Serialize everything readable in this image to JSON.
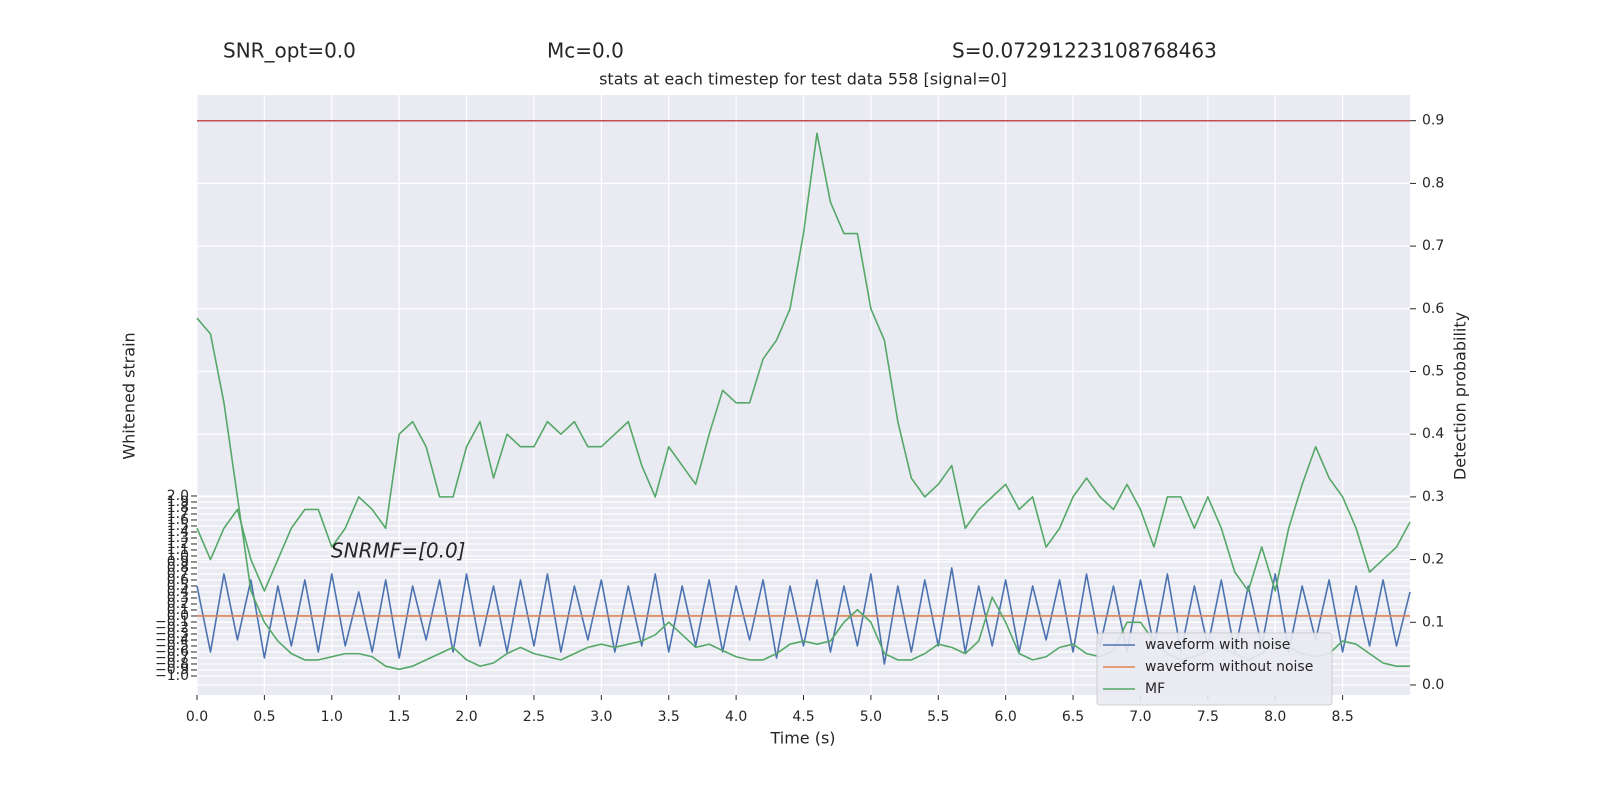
{
  "chart_data": {
    "type": "line",
    "title": "stats at each timestep for test data 558 [signal=0]",
    "headers": [
      "SNR_opt=0.0",
      "Mc=0.0",
      "S=0.07291223108768463"
    ],
    "annotation": "SNRMF=[0.0]",
    "xlabel": "Time (s)",
    "ylabel": "Whitened strain",
    "y2label": "Detection probability",
    "grid": true,
    "legend": "lower right",
    "xlim": [
      0,
      9
    ],
    "ylim": [
      -1.317,
      8.683
    ],
    "y2lim": [
      -0.016,
      0.941
    ],
    "threshold": 0.9,
    "threshold_color": "#c44e52",
    "xticks": [
      {
        "value": 0,
        "label": "0.0"
      },
      {
        "value": 0.5,
        "label": "0.5"
      },
      {
        "value": 1,
        "label": "1.0"
      },
      {
        "value": 1.5,
        "label": "1.5"
      },
      {
        "value": 2,
        "label": "2.0"
      },
      {
        "value": 2.5,
        "label": "2.5"
      },
      {
        "value": 3,
        "label": "3.0"
      },
      {
        "value": 3.5,
        "label": "3.5"
      },
      {
        "value": 4,
        "label": "4.0"
      },
      {
        "value": 4.5,
        "label": "4.5"
      },
      {
        "value": 5,
        "label": "5.0"
      },
      {
        "value": 5.5,
        "label": "5.5"
      },
      {
        "value": 6,
        "label": "6.0"
      },
      {
        "value": 6.5,
        "label": "6.5"
      },
      {
        "value": 7,
        "label": "7.0"
      },
      {
        "value": 7.5,
        "label": "7.5"
      },
      {
        "value": 8,
        "label": "8.0"
      },
      {
        "value": 8.5,
        "label": "8.5"
      }
    ],
    "yticks": [
      {
        "value": -1,
        "label": "−1.0"
      },
      {
        "value": -0.9,
        "label": "−0.9"
      },
      {
        "value": -0.8,
        "label": "−0.8"
      },
      {
        "value": -0.7,
        "label": "−0.7"
      },
      {
        "value": -0.6,
        "label": "−0.6"
      },
      {
        "value": -0.5,
        "label": "−0.5"
      },
      {
        "value": -0.4,
        "label": "−0.4"
      },
      {
        "value": -0.3,
        "label": "−0.3"
      },
      {
        "value": -0.2,
        "label": "−0.2"
      },
      {
        "value": -0.1,
        "label": "−0.1"
      },
      {
        "value": 0,
        "label": "0.0"
      },
      {
        "value": 0.1,
        "label": "0.1"
      },
      {
        "value": 0.2,
        "label": "0.2"
      },
      {
        "value": 0.3,
        "label": "0.3"
      },
      {
        "value": 0.4,
        "label": "0.4"
      },
      {
        "value": 0.5,
        "label": "0.5"
      },
      {
        "value": 0.6,
        "label": "0.6"
      },
      {
        "value": 0.7,
        "label": "0.7"
      },
      {
        "value": 0.8,
        "label": "0.8"
      },
      {
        "value": 0.9,
        "label": "0.9"
      },
      {
        "value": 1,
        "label": "1.0"
      },
      {
        "value": 1.1,
        "label": "1.1"
      },
      {
        "value": 1.2,
        "label": "1.2"
      },
      {
        "value": 1.3,
        "label": "1.3"
      },
      {
        "value": 1.4,
        "label": "1.4"
      },
      {
        "value": 1.5,
        "label": "1.5"
      },
      {
        "value": 1.6,
        "label": "1.6"
      },
      {
        "value": 1.7,
        "label": "1.7"
      },
      {
        "value": 1.8,
        "label": "1.8"
      },
      {
        "value": 1.9,
        "label": "1.9"
      },
      {
        "value": 2,
        "label": "2.0"
      }
    ],
    "y2ticks": [
      {
        "value": 0,
        "label": "0.0"
      },
      {
        "value": 0.1,
        "label": "0.1"
      },
      {
        "value": 0.2,
        "label": "0.2"
      },
      {
        "value": 0.3,
        "label": "0.3"
      },
      {
        "value": 0.4,
        "label": "0.4"
      },
      {
        "value": 0.5,
        "label": "0.5"
      },
      {
        "value": 0.6,
        "label": "0.6"
      },
      {
        "value": 0.7,
        "label": "0.7"
      },
      {
        "value": 0.8,
        "label": "0.8"
      },
      {
        "value": 0.9,
        "label": "0.9"
      }
    ],
    "x": [
      0,
      0.1,
      0.2,
      0.3,
      0.4,
      0.5,
      0.6,
      0.7,
      0.8,
      0.9,
      1,
      1.1,
      1.2,
      1.3,
      1.4,
      1.5,
      1.6,
      1.7,
      1.8,
      1.9,
      2,
      2.1,
      2.2,
      2.3,
      2.4,
      2.5,
      2.6,
      2.7,
      2.8,
      2.9,
      3,
      3.1,
      3.2,
      3.3,
      3.4,
      3.5,
      3.6,
      3.7,
      3.8,
      3.9,
      4,
      4.1,
      4.2,
      4.3,
      4.4,
      4.5,
      4.6,
      4.7,
      4.8,
      4.9,
      5,
      5.1,
      5.2,
      5.3,
      5.4,
      5.5,
      5.6,
      5.7,
      5.8,
      5.9,
      6,
      6.1,
      6.2,
      6.3,
      6.4,
      6.5,
      6.6,
      6.7,
      6.8,
      6.9,
      7,
      7.1,
      7.2,
      7.3,
      7.4,
      7.5,
      7.6,
      7.7,
      7.8,
      7.9,
      8,
      8.1,
      8.2,
      8.3,
      8.4,
      8.5,
      8.6,
      8.7,
      8.8,
      8.9,
      9
    ],
    "series": [
      {
        "name": "waveform with noise",
        "color": "#4c72b0",
        "values": [
          0.5,
          -0.6,
          0.7,
          -0.4,
          0.6,
          -0.7,
          0.5,
          -0.5,
          0.6,
          -0.6,
          0.7,
          -0.5,
          0.4,
          -0.6,
          0.6,
          -0.7,
          0.5,
          -0.4,
          0.6,
          -0.6,
          0.7,
          -0.5,
          0.5,
          -0.6,
          0.6,
          -0.5,
          0.7,
          -0.6,
          0.5,
          -0.4,
          0.6,
          -0.6,
          0.5,
          -0.5,
          0.7,
          -0.6,
          0.5,
          -0.5,
          0.6,
          -0.6,
          0.5,
          -0.4,
          0.6,
          -0.7,
          0.5,
          -0.5,
          0.6,
          -0.6,
          0.5,
          -0.5,
          0.7,
          -0.8,
          0.5,
          -0.6,
          0.6,
          -0.5,
          0.8,
          -0.6,
          0.5,
          -0.5,
          0.6,
          -0.6,
          0.5,
          -0.4,
          0.6,
          -0.6,
          0.7,
          -0.5,
          0.5,
          -0.6,
          0.6,
          -0.5,
          0.7,
          -0.6,
          0.5,
          -0.5,
          0.6,
          -0.6,
          0.5,
          -0.5,
          0.7,
          -0.6,
          0.5,
          -0.4,
          0.6,
          -0.6,
          0.5,
          -0.5,
          0.6,
          -0.5,
          0.4
        ]
      },
      {
        "name": "waveform without noise",
        "color": "#dd8452",
        "x": [
          0,
          9
        ],
        "values": [
          0,
          0
        ]
      },
      {
        "name": "MF",
        "color": "#55a868",
        "axis": "y2",
        "values": [
          0.585,
          0.56,
          0.45,
          0.3,
          0.15,
          0.1,
          0.07,
          0.05,
          0.04,
          0.04,
          0.045,
          0.05,
          0.05,
          0.045,
          0.03,
          0.025,
          0.03,
          0.04,
          0.05,
          0.06,
          0.04,
          0.03,
          0.035,
          0.05,
          0.06,
          0.05,
          0.045,
          0.04,
          0.05,
          0.06,
          0.065,
          0.06,
          0.065,
          0.07,
          0.08,
          0.1,
          0.08,
          0.06,
          0.065,
          0.055,
          0.045,
          0.04,
          0.04,
          0.05,
          0.065,
          0.07,
          0.065,
          0.07,
          0.1,
          0.12,
          0.1,
          0.05,
          0.04,
          0.04,
          0.05,
          0.065,
          0.06,
          0.05,
          0.07,
          0.14,
          0.1,
          0.05,
          0.04,
          0.045,
          0.06,
          0.065,
          0.05,
          0.045,
          0.055,
          0.1,
          0.1,
          0.07,
          0.05,
          0.04,
          0.045,
          0.055,
          0.06,
          0.05,
          0.04,
          0.05,
          0.07,
          0.06,
          0.05,
          0.045,
          0.05,
          0.07,
          0.065,
          0.05,
          0.035,
          0.03,
          0.03
        ]
      },
      {
        "color": "#55a868",
        "axis": "y2",
        "values": [
          0.25,
          0.2,
          0.25,
          0.28,
          0.2,
          0.15,
          0.2,
          0.25,
          0.28,
          0.28,
          0.22,
          0.25,
          0.3,
          0.28,
          0.25,
          0.4,
          0.42,
          0.38,
          0.3,
          0.3,
          0.38,
          0.42,
          0.33,
          0.4,
          0.38,
          0.38,
          0.42,
          0.4,
          0.42,
          0.38,
          0.38,
          0.4,
          0.42,
          0.35,
          0.3,
          0.38,
          0.35,
          0.32,
          0.4,
          0.47,
          0.45,
          0.45,
          0.52,
          0.55,
          0.6,
          0.72,
          0.88,
          0.77,
          0.72,
          0.72,
          0.6,
          0.55,
          0.42,
          0.33,
          0.3,
          0.32,
          0.35,
          0.25,
          0.28,
          0.3,
          0.32,
          0.28,
          0.3,
          0.22,
          0.25,
          0.3,
          0.33,
          0.3,
          0.28,
          0.32,
          0.28,
          0.22,
          0.3,
          0.3,
          0.25,
          0.3,
          0.25,
          0.18,
          0.15,
          0.22,
          0.15,
          0.25,
          0.32,
          0.38,
          0.33,
          0.3,
          0.25,
          0.18,
          0.2,
          0.22,
          0.26
        ]
      }
    ]
  }
}
